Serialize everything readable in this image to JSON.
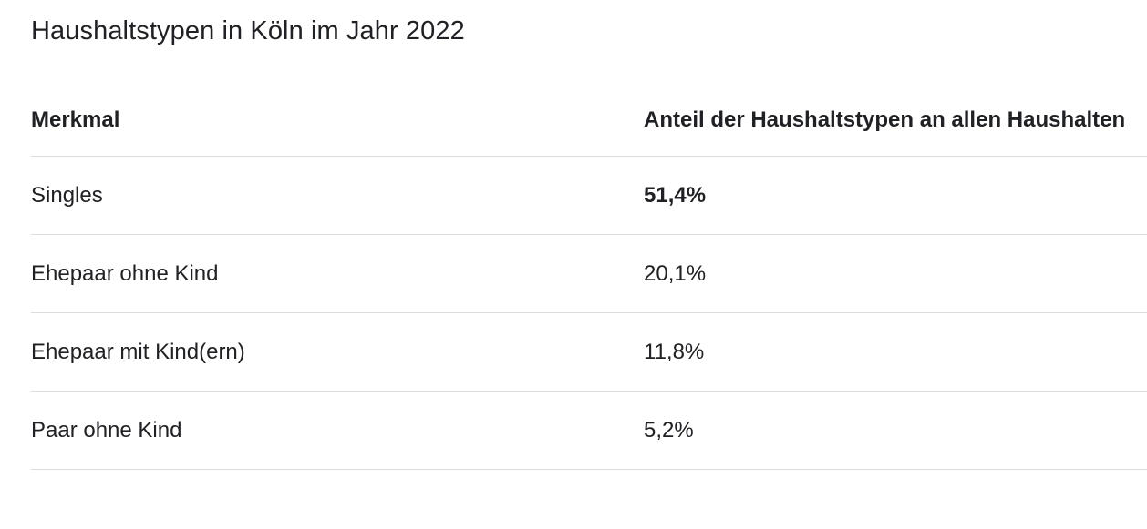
{
  "title": "Haushaltstypen in Köln im Jahr 2022",
  "table": {
    "headers": [
      "Merkmal",
      "Anteil der Haushaltstypen an allen Haushalten"
    ],
    "rows": [
      {
        "label": "Singles",
        "value": "51,4%"
      },
      {
        "label": "Ehepaar ohne Kind",
        "value": "20,1%"
      },
      {
        "label": "Ehepaar mit Kind(ern)",
        "value": "11,8%"
      },
      {
        "label": "Paar ohne Kind",
        "value": "5,2%"
      }
    ]
  }
}
